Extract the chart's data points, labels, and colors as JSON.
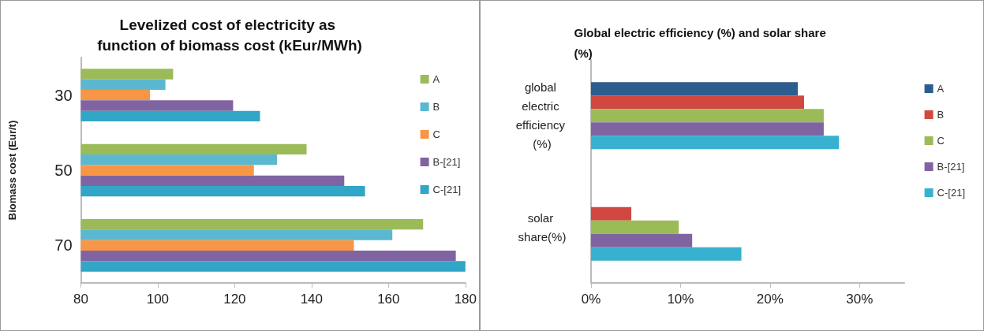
{
  "chart_data": [
    {
      "type": "bar",
      "orientation": "horizontal",
      "title": "Levelized cost of electricity as function of biomass cost (kEur/MWh)",
      "ylabel": "Biomass cost (Eur/t)",
      "categories": [
        "30",
        "50",
        "70"
      ],
      "xlim": [
        80,
        180
      ],
      "xticks": [
        80,
        100,
        120,
        140,
        160,
        180
      ],
      "grid": false,
      "legend": "right",
      "series": [
        {
          "name": "A",
          "color": "#9bbb59",
          "values": [
            104,
            138.7,
            169
          ]
        },
        {
          "name": "B",
          "color": "#5bb8d0",
          "values": [
            102,
            131,
            161
          ]
        },
        {
          "name": "C",
          "color": "#f79646",
          "values": [
            98,
            125,
            151
          ]
        },
        {
          "name": "B-[21]",
          "color": "#8064a2",
          "values": [
            119.6,
            148.5,
            177.5
          ]
        },
        {
          "name": "C-[21]",
          "color": "#31a6c7",
          "values": [
            126.6,
            153.9,
            180
          ]
        }
      ]
    },
    {
      "type": "bar",
      "orientation": "horizontal",
      "title": "Global electric efficiency (%) and solar share (%)",
      "categories": [
        "global electric efficiency (%)",
        "solar share(%)"
      ],
      "xlim": [
        0,
        35
      ],
      "xticks": [
        {
          "value": 0,
          "label": "0%"
        },
        {
          "value": 10,
          "label": "10%"
        },
        {
          "value": 20,
          "label": "20%"
        },
        {
          "value": 30,
          "label": "30%"
        }
      ],
      "grid": false,
      "legend": "right",
      "series": [
        {
          "name": "A",
          "color": "#2c5d8f",
          "values": [
            23.1,
            null
          ]
        },
        {
          "name": "B",
          "color": "#d0483f",
          "values": [
            23.8,
            4.5
          ]
        },
        {
          "name": "C",
          "color": "#9bbb59",
          "values": [
            26.0,
            9.8
          ]
        },
        {
          "name": "B-[21]",
          "color": "#8064a2",
          "values": [
            26.0,
            11.3
          ]
        },
        {
          "name": "C-[21]",
          "color": "#37b1cf",
          "values": [
            27.7,
            16.8
          ]
        }
      ]
    }
  ]
}
